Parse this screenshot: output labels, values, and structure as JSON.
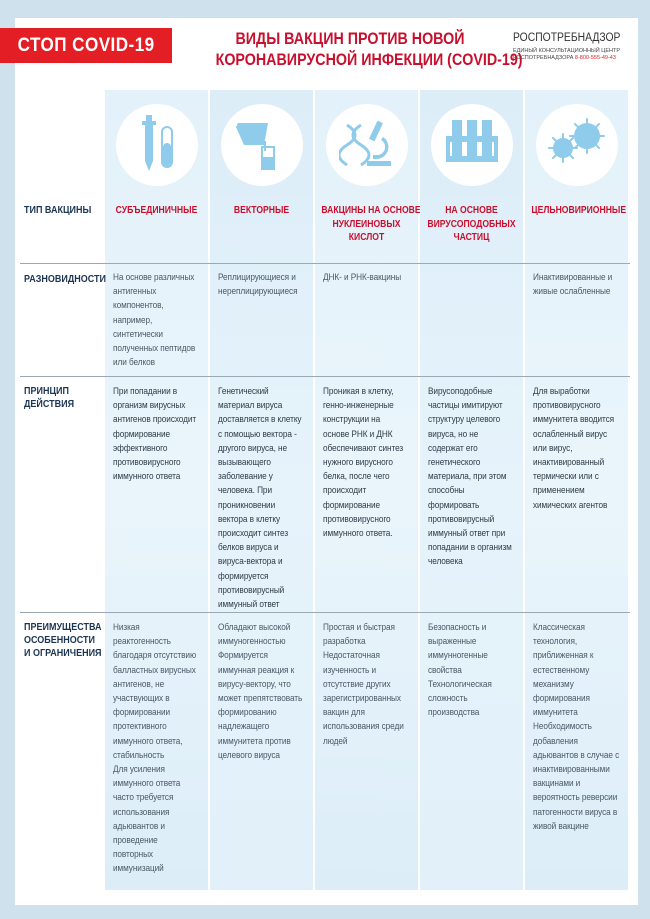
{
  "header": {
    "banner": "СТОП COVID-19",
    "title_line1": "ВИДЫ ВАКЦИН ПРОТИВ НОВОЙ",
    "title_line2": "КОРОНАВИРУСНОЙ ИНФЕКЦИИ (COVID-19)",
    "org_name": "РОСПОТРЕБНАДЗОР",
    "org_sub1": "Единый консультационный центр",
    "org_sub2": "Роспотребнадзора",
    "org_phone": "8-800-555-49-43"
  },
  "colors": {
    "accent": "#e31e24",
    "title": "#c8102e",
    "label": "#1c3553",
    "column_bg": "#e3f1fa",
    "page_bg": "#cfe1ec"
  },
  "row_labels": {
    "type": "ТИП ВАКЦИНЫ",
    "varieties": "РАЗНОВИДНОСТИ",
    "principle": "ПРИНЦИП\nДЕЙСТВИЯ",
    "advantages": "ПРЕИМУЩЕСТВА\nОСОБЕННОСТИ\nИ ОГРАНИЧЕНИЯ"
  },
  "columns": [
    {
      "icon": "pipette-test-tube-icon",
      "type": "СУБЪЕДИНИЧНЫЕ",
      "varieties": "На основе различных\nантигенных\nкомпонентов,\nнапример,\nсинтетически\nполученных пептидов\nили белков",
      "principle": "При попадании в\nорганизм вирусных\nантигенов происходит\nформирование\nэффективного\nпротивовирусного\nиммунного ответа",
      "advantages": "Низкая\nреактогенность\nблагодаря отсутствию\nбалластных вирусных\nантигенов, не\nучаствующих в\nформировании\nпротективного\nиммунного ответа,\nстабильность\nДля усиления\nиммунного ответа\nчасто требуется\nиспользования\nадьювантов и\nпроведение\nповторных\nиммунизаций"
    },
    {
      "icon": "beaker-pouring-icon",
      "type": "ВЕКТОРНЫЕ",
      "varieties": "Реплицирующиеся и\nнереплицирующиеся",
      "principle": "Генетический\nматериал вируса\nдоставляется в клетку\nс помощью вектора -\nдругого вируса, не\nвызывающего\nзаболевание у\nчеловека. При\nпроникновении\nвектора в клетку\nпроисходит синтез\nбелков вируса и\nвируса-вектора и\nформируется\nпротивовирусный\nиммунный ответ",
      "advantages": "Обладают высокой\nиммуногенностью\nФормируется\nиммунная реакция к\nвирусу-вектору, что\nможет препятствовать\nформированию\nнадлежащего\nиммунитета против\nцелевого вируса"
    },
    {
      "icon": "dna-microscope-icon",
      "type": "ВАКЦИНЫ НА ОСНОВЕ\nНУКЛЕИНОВЫХ\nКИСЛОТ",
      "varieties": "ДНК- и РНК-вакцины",
      "principle": "Проникая в клетку,\nгенно-инженерные\nконструкции на\nоснове РНК и ДНК\nобеспечивают синтез\nнужного вирусного\nбелка, после чего\nпроисходит\nформирование\nпротивовирусного\nиммунного ответа.",
      "advantages": "Простая и быстрая\nразработка\nНедостаточная\nизученность и\nотсутствие других\nзарегистрированных\nвакцин для\nиспользования среди\nлюдей"
    },
    {
      "icon": "test-tube-rack-icon",
      "type": "НА ОСНОВЕ\nВИРУСОПОДОБНЫХ\nЧАСТИЦ",
      "varieties": "",
      "principle": "Вирусоподобные\nчастицы имитируют\nструктуру целевого\nвируса, но не\nсодержат его\nгенетического\nматериала, при этом\nспособны\nформировать\nпротивовирусный\nиммунный ответ при\nпопадании в организм\nчеловека",
      "advantages": "Безопасность и\nвыраженные\nиммунногенные\nсвойства\nТехнологическая\nсложность\nпроизводства"
    },
    {
      "icon": "virus-icon",
      "type": "ЦЕЛЬНОВИРИОННЫЕ",
      "varieties": "Инактивированные и\nживые ослабленные",
      "principle": "Для выработки\nпротивовирусного\nиммунитета вводится\nослабленный вирус\nили вирус,\nинактивированный\nтермически или с\nприменением\nхимических агентов",
      "advantages": "Классическая\nтехнология,\nприближенная к\nестественному\nмеханизму\nформирования\nиммунитета\nНеобходимость\nдобавления\nадьювантов в случае с\nинактивированными\nвакцинами и\nвероятность реверсии\nпатогенности вируса в\nживой вакцине"
    }
  ]
}
